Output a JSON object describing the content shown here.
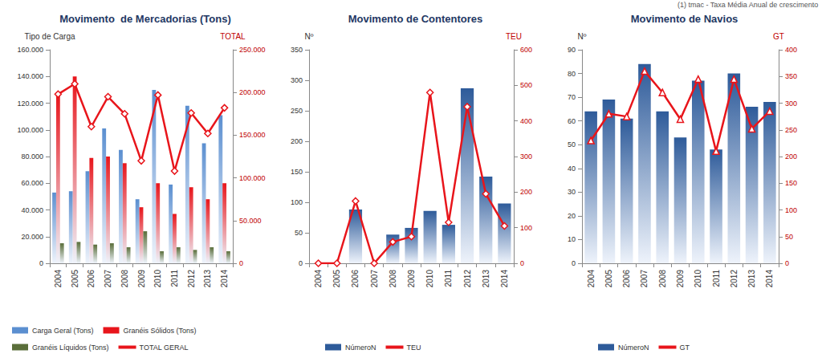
{
  "chart_data": [
    {
      "type": "bar",
      "title": "Movimento  de Mercadorias (Tons)",
      "categories": [
        "2004",
        "2005",
        "2006",
        "2007",
        "2008",
        "2009",
        "2010",
        "2011",
        "2012",
        "2013",
        "2014"
      ],
      "ylabel": "Tipo de Carga",
      "y2label": "TOTAL",
      "ylim": [
        0,
        160000
      ],
      "yticks": [
        0,
        {
          "value": 20000,
          "label": "20.000"
        },
        {
          "value": 40000,
          "label": "40.000"
        },
        {
          "value": 60000,
          "label": "60.000"
        },
        {
          "value": 80000,
          "label": "80.000"
        },
        {
          "value": 100000,
          "label": "100.000"
        },
        {
          "value": 120000,
          "label": "120.000"
        },
        {
          "value": 140000,
          "label": "140.000"
        },
        {
          "value": 160000,
          "label": "160.000"
        }
      ],
      "y2lim": [
        0,
        250000
      ],
      "y2ticks": [
        0,
        {
          "value": 50000,
          "label": "50.000"
        },
        {
          "value": 100000,
          "label": "100.000"
        },
        {
          "value": 150000,
          "label": "150.000"
        },
        {
          "value": 200000,
          "label": "200.000"
        },
        {
          "value": 250000,
          "label": "250.000"
        }
      ],
      "grid": false,
      "legend": "bottom",
      "series": [
        {
          "name": "Carga Geral (Tons)",
          "type": "bar",
          "color": "#5b8fd0",
          "values": [
            53000,
            54000,
            69000,
            101000,
            85000,
            48000,
            130000,
            59000,
            118000,
            90000,
            111000
          ]
        },
        {
          "name": "Granéis Sólidos (Tons)",
          "type": "bar",
          "color": "#e8151b",
          "values": [
            127000,
            140000,
            79000,
            80000,
            75000,
            42000,
            60000,
            37000,
            57000,
            48000,
            60000
          ]
        },
        {
          "name": "Granéis Líquidos (Tons)",
          "type": "bar",
          "color": "#5a6e3a",
          "values": [
            15000,
            16000,
            14000,
            15000,
            12000,
            24000,
            9000,
            12000,
            10000,
            12000,
            9000
          ]
        },
        {
          "name": "TOTAL GERAL",
          "type": "line",
          "color": "#e8151b",
          "axis": "y2",
          "marker": "diamond",
          "values": [
            198000,
            210000,
            160000,
            195000,
            175000,
            120000,
            197000,
            108000,
            176000,
            152000,
            182000
          ]
        }
      ]
    },
    {
      "type": "bar",
      "title": "Movimento de Contentores",
      "categories": [
        "2004",
        "2005",
        "2006",
        "2007",
        "2008",
        "2009",
        "2010",
        "2011",
        "2012",
        "2013",
        "2014"
      ],
      "ylabel": "Nº",
      "y2label": "TEU",
      "ylim": [
        0,
        350
      ],
      "yticks": [
        0,
        50,
        100,
        150,
        200,
        250,
        300,
        350
      ],
      "y2lim": [
        0,
        600
      ],
      "y2ticks": [
        0,
        100,
        200,
        300,
        400,
        500,
        600
      ],
      "grid": false,
      "legend": "bottom",
      "series": [
        {
          "name": "NúmeroN",
          "type": "bar",
          "color": "#2e5b9a",
          "values": [
            0,
            0,
            88,
            0,
            47,
            58,
            86,
            63,
            287,
            142,
            98
          ]
        },
        {
          "name": "TEU",
          "type": "line",
          "color": "#e8151b",
          "axis": "y2",
          "marker": "diamond",
          "values": [
            0,
            0,
            175,
            0,
            60,
            75,
            480,
            115,
            440,
            195,
            105
          ]
        }
      ]
    },
    {
      "type": "bar",
      "title": "Movimento de Navios",
      "annotation": "(1) tmac - Taxa Média Anual de crescimento",
      "categories": [
        "2004",
        "2005",
        "2006",
        "2007",
        "2008",
        "2009",
        "2010",
        "2011",
        "2012",
        "2013",
        "2014"
      ],
      "ylabel": "Nº",
      "y2label": "GT",
      "ylim": [
        0,
        90
      ],
      "yticks": [
        0,
        10,
        20,
        30,
        40,
        50,
        60,
        70,
        80,
        90
      ],
      "y2lim": [
        0,
        400
      ],
      "y2ticks": [
        0,
        50,
        100,
        150,
        200,
        250,
        300,
        350,
        400
      ],
      "grid": false,
      "legend": "bottom",
      "series": [
        {
          "name": "NúmeroN",
          "type": "bar",
          "color": "#2e5b9a",
          "values": [
            64,
            69,
            61,
            84,
            64,
            53,
            77,
            48,
            80,
            66,
            68
          ]
        },
        {
          "name": "GT",
          "type": "line",
          "color": "#e8151b",
          "axis": "y2",
          "marker": "triangle",
          "values": [
            230,
            280,
            275,
            360,
            320,
            270,
            345,
            210,
            345,
            252,
            285
          ]
        }
      ]
    }
  ]
}
